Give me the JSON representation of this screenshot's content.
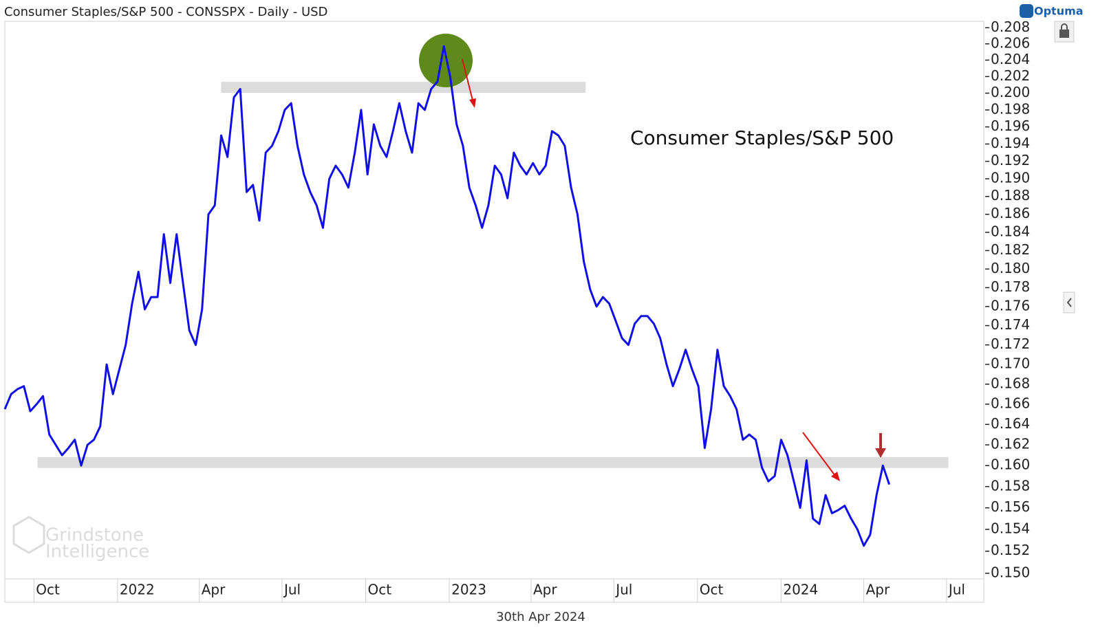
{
  "chart_data": {
    "type": "line",
    "title": "Consumer Staples/S&P 500 - CONSSPX - Daily - USD",
    "annotation": "Consumer Staples/S&P 500",
    "footer": "30th Apr 2024",
    "brand": "Optuma",
    "watermark": [
      "Grindstone",
      "Intelligence"
    ],
    "color": "#1010e6",
    "log": true,
    "x": [
      "2021-08-30",
      "2021-09-06",
      "2021-09-13",
      "2021-09-20",
      "2021-09-27",
      "2021-10-04",
      "2021-10-11",
      "2021-10-18",
      "2021-10-25",
      "2021-11-01",
      "2021-11-08",
      "2021-11-15",
      "2021-11-22",
      "2021-11-29",
      "2021-12-06",
      "2021-12-13",
      "2021-12-20",
      "2021-12-27",
      "2022-01-03",
      "2022-01-10",
      "2022-01-17",
      "2022-01-24",
      "2022-01-31",
      "2022-02-07",
      "2022-02-14",
      "2022-02-21",
      "2022-02-28",
      "2022-03-07",
      "2022-03-14",
      "2022-03-21",
      "2022-03-28",
      "2022-04-04",
      "2022-04-11",
      "2022-04-18",
      "2022-04-25",
      "2022-05-02",
      "2022-05-09",
      "2022-05-16",
      "2022-05-23",
      "2022-05-30",
      "2022-06-06",
      "2022-06-13",
      "2022-06-20",
      "2022-06-27",
      "2022-07-04",
      "2022-07-11",
      "2022-07-18",
      "2022-07-25",
      "2022-08-01",
      "2022-08-08",
      "2022-08-15",
      "2022-08-22",
      "2022-08-29",
      "2022-09-05",
      "2022-09-12",
      "2022-09-19",
      "2022-09-26",
      "2022-10-03",
      "2022-10-10",
      "2022-10-17",
      "2022-10-24",
      "2022-10-31",
      "2022-11-07",
      "2022-11-14",
      "2022-11-21",
      "2022-11-28",
      "2022-12-05",
      "2022-12-12",
      "2022-12-19",
      "2022-12-26",
      "2023-01-02",
      "2023-01-09",
      "2023-01-16",
      "2023-01-23",
      "2023-01-30",
      "2023-02-06",
      "2023-02-13",
      "2023-02-20",
      "2023-02-27",
      "2023-03-06",
      "2023-03-13",
      "2023-03-20",
      "2023-03-27",
      "2023-04-03",
      "2023-04-10",
      "2023-04-17",
      "2023-04-24",
      "2023-05-01",
      "2023-05-08",
      "2023-05-15",
      "2023-05-22",
      "2023-05-29",
      "2023-06-05",
      "2023-06-12",
      "2023-06-19",
      "2023-06-26",
      "2023-07-03",
      "2023-07-10",
      "2023-07-17",
      "2023-07-24",
      "2023-07-31",
      "2023-08-07",
      "2023-08-14",
      "2023-08-21",
      "2023-08-28",
      "2023-09-04",
      "2023-09-11",
      "2023-09-18",
      "2023-09-25",
      "2023-10-02",
      "2023-10-09",
      "2023-10-16",
      "2023-10-23",
      "2023-10-30",
      "2023-11-06",
      "2023-11-13",
      "2023-11-20",
      "2023-11-27",
      "2023-12-04",
      "2023-12-11",
      "2023-12-18",
      "2023-12-25",
      "2024-01-01",
      "2024-01-08",
      "2024-01-15",
      "2024-01-22",
      "2024-01-29",
      "2024-02-05",
      "2024-02-12",
      "2024-02-19",
      "2024-02-26",
      "2024-03-04",
      "2024-03-11",
      "2024-03-18",
      "2024-03-25",
      "2024-04-01",
      "2024-04-08",
      "2024-04-15",
      "2024-04-22",
      "2024-04-29"
    ],
    "values": [
      0.1655,
      0.167,
      0.1675,
      0.1678,
      0.1653,
      0.166,
      0.1668,
      0.163,
      0.162,
      0.161,
      0.1617,
      0.1625,
      0.16,
      0.162,
      0.1625,
      0.1638,
      0.17,
      0.167,
      0.1695,
      0.172,
      0.1763,
      0.1797,
      0.1757,
      0.177,
      0.177,
      0.1838,
      0.1785,
      0.1838,
      0.1785,
      0.1735,
      0.172,
      0.1757,
      0.186,
      0.187,
      0.195,
      0.1925,
      0.1995,
      0.2005,
      0.1885,
      0.1893,
      0.1853,
      0.193,
      0.1938,
      0.1955,
      0.198,
      0.1988,
      0.1938,
      0.1905,
      0.1885,
      0.187,
      0.1845,
      0.19,
      0.1915,
      0.1905,
      0.189,
      0.193,
      0.198,
      0.1905,
      0.1963,
      0.1938,
      0.1925,
      0.1955,
      0.1988,
      0.1955,
      0.193,
      0.1988,
      0.198,
      0.2005,
      0.2014,
      0.2057,
      0.202,
      0.1963,
      0.1938,
      0.189,
      0.187,
      0.1845,
      0.187,
      0.1915,
      0.1905,
      0.1878,
      0.193,
      0.1915,
      0.1905,
      0.1918,
      0.1905,
      0.1915,
      0.1955,
      0.195,
      0.1938,
      0.189,
      0.186,
      0.1808,
      0.1778,
      0.176,
      0.177,
      0.1763,
      0.1745,
      0.1727,
      0.172,
      0.1742,
      0.175,
      0.175,
      0.1742,
      0.1727,
      0.17,
      0.1678,
      0.1695,
      0.1715,
      0.1695,
      0.1678,
      0.1617,
      0.1655,
      0.1715,
      0.1678,
      0.1668,
      0.1655,
      0.1625,
      0.163,
      0.1625,
      0.1598,
      0.1585,
      0.159,
      0.1625,
      0.161,
      0.1585,
      0.156,
      0.1605,
      0.155,
      0.1545,
      0.1572,
      0.1555,
      0.1558,
      0.1562,
      0.155,
      0.154,
      0.1525,
      0.1535,
      0.1572,
      0.16,
      0.1582
    ],
    "bands": [
      {
        "value": 0.2007,
        "start": "2022-04-25",
        "end": "2023-05-31"
      },
      {
        "value": 0.1603,
        "start": "2021-10-05",
        "end": "2024-07-03"
      }
    ],
    "xlim": [
      "2021-08-30",
      "2024-08-11"
    ],
    "xticks": [
      {
        "value": "2021-10-01",
        "label": "Oct"
      },
      {
        "value": "2022-01-01",
        "label": "2022"
      },
      {
        "value": "2022-04-01",
        "label": "Apr"
      },
      {
        "value": "2022-07-01",
        "label": "Jul"
      },
      {
        "value": "2022-10-01",
        "label": "Oct"
      },
      {
        "value": "2023-01-01",
        "label": "2023"
      },
      {
        "value": "2023-04-01",
        "label": "Apr"
      },
      {
        "value": "2023-07-01",
        "label": "Jul"
      },
      {
        "value": "2023-10-01",
        "label": "Oct"
      },
      {
        "value": "2024-01-01",
        "label": "2024"
      },
      {
        "value": "2024-04-01",
        "label": "Apr"
      },
      {
        "value": "2024-07-01",
        "label": "Jul"
      }
    ],
    "ylim": [
      0.1495,
      0.2088
    ],
    "yticks": [
      {
        "value": 0.15,
        "label": "0.150"
      },
      0.152,
      0.154,
      0.156,
      0.158,
      {
        "value": 0.16,
        "label": "0.160"
      },
      0.162,
      0.164,
      0.166,
      0.168,
      {
        "value": 0.17,
        "label": "0.170"
      },
      0.172,
      0.174,
      0.176,
      0.178,
      {
        "value": 0.18,
        "label": "0.180"
      },
      0.182,
      0.184,
      0.186,
      0.188,
      {
        "value": 0.19,
        "label": "0.190"
      },
      0.192,
      0.194,
      0.196,
      0.198,
      {
        "value": 0.2,
        "label": "0.200"
      },
      0.202,
      0.204,
      0.206,
      0.208
    ]
  }
}
